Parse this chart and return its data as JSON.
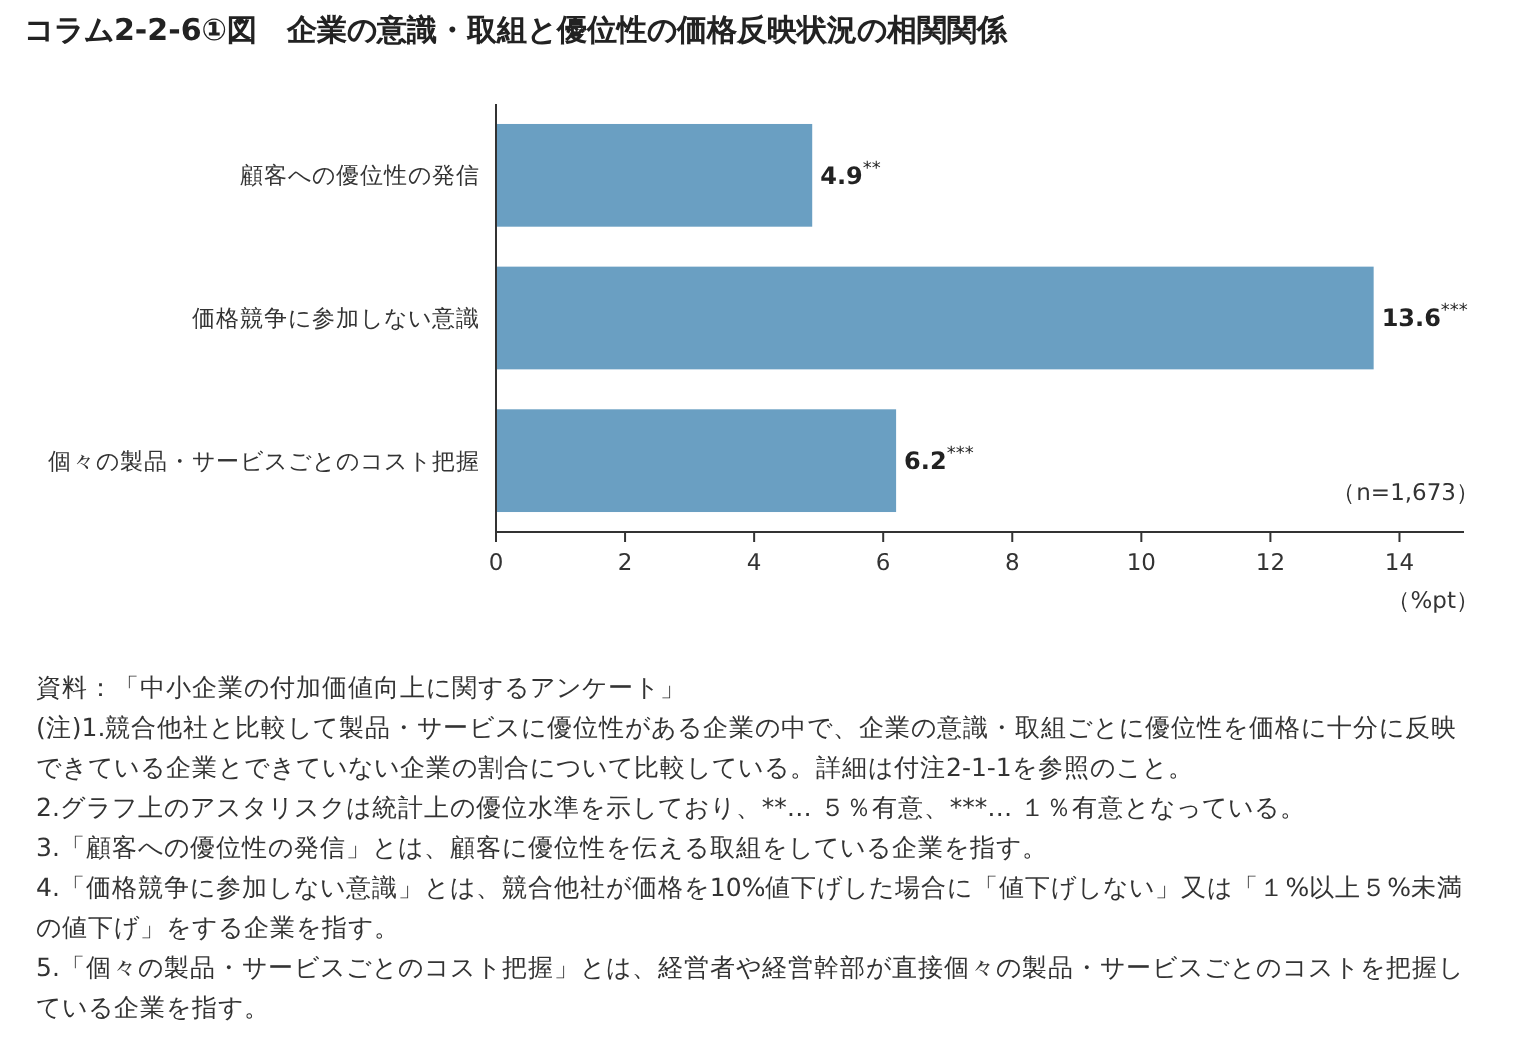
{
  "chart_data": {
    "type": "bar",
    "orientation": "horizontal",
    "title": "コラム2-2-6①図　企業の意識・取組と優位性の価格反映状況の相関関係",
    "xlabel": "（%pt）",
    "categories": [
      "顧客への優位性の発信",
      "価格競争に参加しない意識",
      "個々の製品・サービスごとのコスト把握"
    ],
    "values": [
      4.9,
      13.6,
      6.2
    ],
    "color": "#6a9fc2",
    "value_labels": [
      "4.9$^{**}$",
      "13.6$^{***}$",
      "6.2$^{***}$"
    ],
    "xlim": [
      0,
      15
    ],
    "xticks": [
      0,
      2,
      4,
      6,
      8,
      10,
      12,
      14
    ],
    "grid": false,
    "annotations": [
      "（n=1,673）",
      "資料：「中小企業の付加価値向上に関するアンケート」",
      "(注)1.競合他社と比較して製品・サービスに優位性がある企業の中で、企業の意識・取組ごとに優位性を価格に十分に反映できている企業とできていない企業の割合について比較している。詳細は付注2-1-1を参照のこと。",
      "2.グラフ上のアスタリスクは統計上の優位水準を示しており、**… ５％有意、***… １％有意となっている。",
      "3.「顧客への優位性の発信」とは、顧客に優位性を伝える取組をしている企業を指す。",
      "4.「価格競争に参加しない意識」とは、競合他社が価格を10%値下げした場合に「値下げしない」又は「１%以上５%未満の値下げ」をする企業を指す。",
      "5.「個々の製品・サービスごとのコスト把握」とは、経営者や経営幹部が直接個々の製品・サービスごとのコストを把握している企業を指す。"
    ]
  }
}
